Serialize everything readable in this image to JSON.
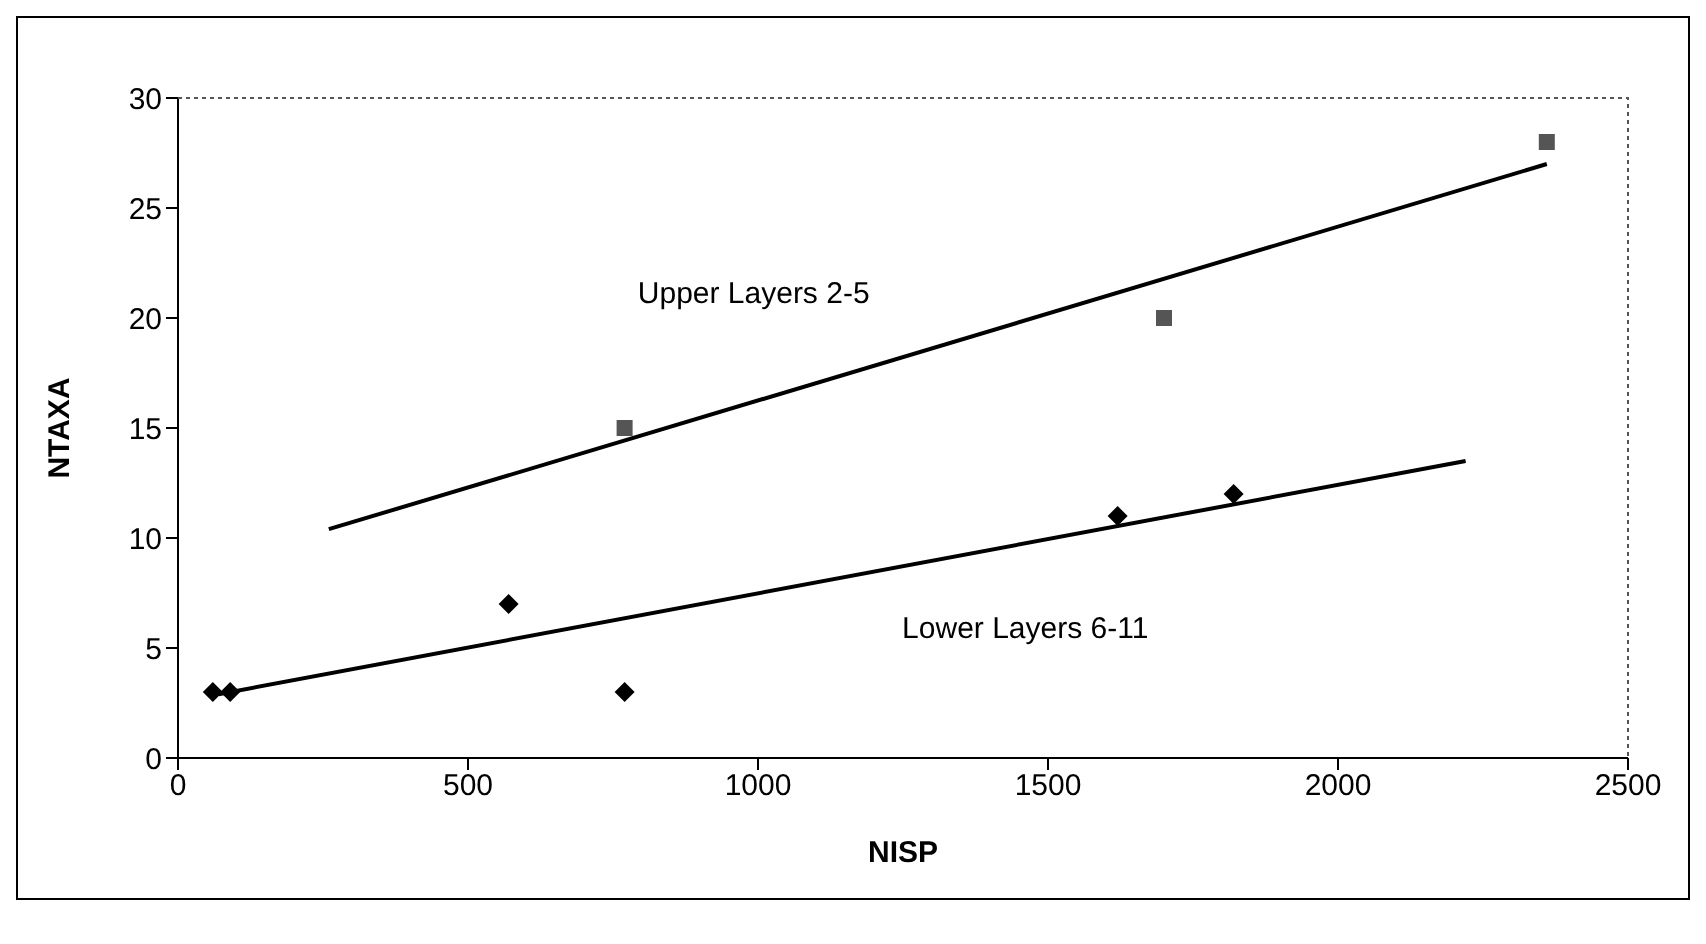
{
  "chart_data": {
    "type": "scatter",
    "xlabel": "NISP",
    "ylabel": "NTAXA",
    "xlim": [
      0,
      2500
    ],
    "xticks": [
      0,
      500,
      1000,
      1500,
      2000,
      2500
    ],
    "ylim": [
      0,
      30
    ],
    "yticks": [
      0,
      5,
      10,
      15,
      20,
      25,
      30
    ],
    "series": [
      {
        "color": "#555555",
        "marker": "square",
        "x": [
          770,
          1700,
          2360
        ],
        "values": [
          15,
          20,
          28
        ]
      },
      {
        "color": "#000000",
        "marker": "diamond",
        "x": [
          60,
          90,
          570,
          770,
          1620,
          1820
        ],
        "values": [
          3,
          3,
          7,
          3,
          11,
          12
        ]
      },
      {
        "name": "Upper Layers 2-5",
        "type": "line",
        "color": "#000000",
        "marker": "none",
        "x": [
          260,
          2360
        ],
        "values": [
          10.4,
          27
        ]
      },
      {
        "name": "Lower Layers 6-11",
        "type": "line",
        "color": "#000000",
        "marker": "none",
        "x": [
          70,
          2220
        ],
        "values": [
          2.9,
          13.5
        ]
      }
    ]
  }
}
